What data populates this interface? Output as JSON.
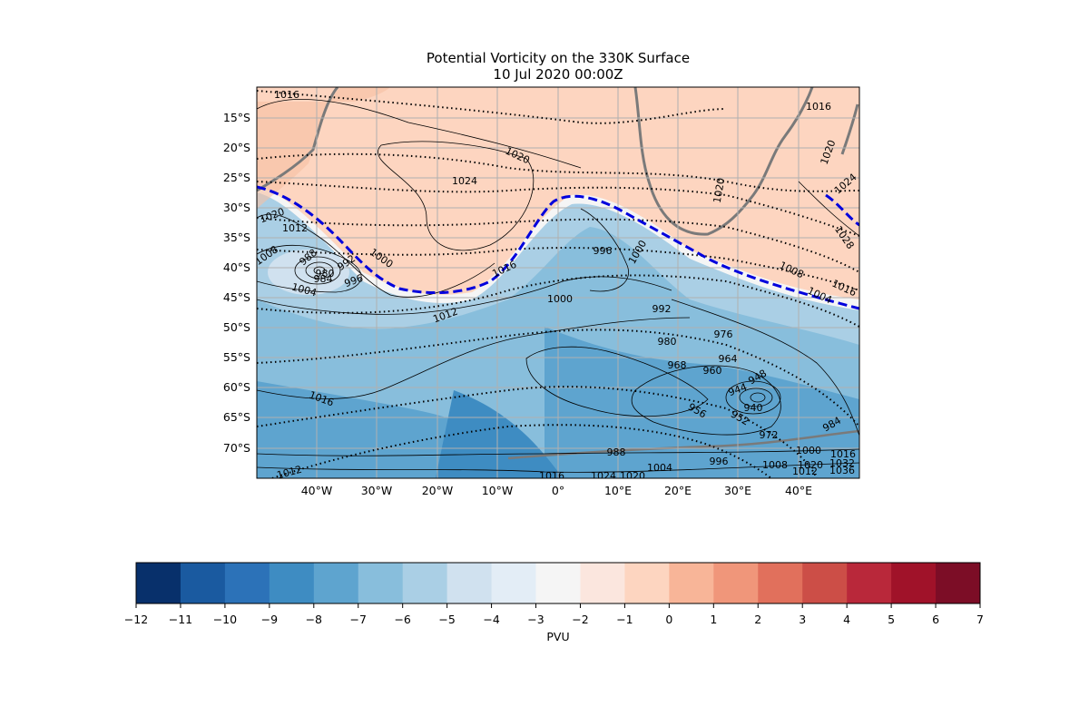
{
  "title": {
    "line1": "Potential Vorticity on the 330K Surface",
    "line2": "10 Jul 2020 00:00Z"
  },
  "map": {
    "lat_labels": [
      "15°S",
      "20°S",
      "25°S",
      "30°S",
      "35°S",
      "40°S",
      "45°S",
      "50°S",
      "55°S",
      "60°S",
      "65°S",
      "70°S"
    ],
    "lon_labels": [
      "40°W",
      "30°W",
      "20°W",
      "10°W",
      "0°",
      "10°E",
      "20°E",
      "30°E",
      "40°E"
    ],
    "contour_labels": [
      {
        "text": "1016",
        "color": "#000"
      },
      {
        "text": "1016",
        "color": "#000"
      },
      {
        "text": "1020",
        "color": "#000"
      },
      {
        "text": "1020",
        "color": "#000"
      },
      {
        "text": "1024",
        "color": "#000"
      },
      {
        "text": "1020",
        "color": "#000"
      },
      {
        "text": "1024",
        "color": "#000"
      },
      {
        "text": "1020",
        "color": "#000"
      },
      {
        "text": "1012",
        "color": "#000"
      },
      {
        "text": "1008",
        "color": "#000"
      },
      {
        "text": "988",
        "color": "#000"
      },
      {
        "text": "1000",
        "color": "#000"
      },
      {
        "text": "980",
        "color": "#000"
      },
      {
        "text": "984",
        "color": "#000"
      },
      {
        "text": "992",
        "color": "#000"
      },
      {
        "text": "996",
        "color": "#000"
      },
      {
        "text": "1004",
        "color": "#000"
      },
      {
        "text": "1016",
        "color": "#000"
      },
      {
        "text": "996",
        "color": "#000"
      },
      {
        "text": "1000",
        "color": "#000"
      },
      {
        "text": "1028",
        "color": "#000"
      },
      {
        "text": "1008",
        "color": "#000"
      },
      {
        "text": "1004",
        "color": "#000"
      },
      {
        "text": "1016",
        "color": "#000"
      },
      {
        "text": "1000",
        "color": "#000"
      },
      {
        "text": "1012",
        "color": "#000"
      },
      {
        "text": "992",
        "color": "#000"
      },
      {
        "text": "980",
        "color": "#000"
      },
      {
        "text": "976",
        "color": "#000"
      },
      {
        "text": "968",
        "color": "#000"
      },
      {
        "text": "964",
        "color": "#000"
      },
      {
        "text": "960",
        "color": "#000"
      },
      {
        "text": "948",
        "color": "#000"
      },
      {
        "text": "944",
        "color": "#000"
      },
      {
        "text": "940",
        "color": "#000"
      },
      {
        "text": "956",
        "color": "#000"
      },
      {
        "text": "952",
        "color": "#000"
      },
      {
        "text": "972",
        "color": "#000"
      },
      {
        "text": "984",
        "color": "#000"
      },
      {
        "text": "1016",
        "color": "#000"
      },
      {
        "text": "988",
        "color": "#000"
      },
      {
        "text": "1012",
        "color": "#000"
      },
      {
        "text": "1016",
        "color": "#000"
      },
      {
        "text": "1024",
        "color": "#000"
      },
      {
        "text": "1020",
        "color": "#000"
      },
      {
        "text": "1004",
        "color": "#000"
      },
      {
        "text": "996",
        "color": "#000"
      },
      {
        "text": "1008",
        "color": "#000"
      },
      {
        "text": "1000",
        "color": "#000"
      },
      {
        "text": "1016",
        "color": "#000"
      },
      {
        "text": "1020",
        "color": "#000"
      },
      {
        "text": "1032",
        "color": "#000"
      },
      {
        "text": "1036",
        "color": "#000"
      },
      {
        "text": "1012",
        "color": "#000"
      }
    ]
  },
  "colorbar": {
    "label": "PVU",
    "ticks": [
      "−12",
      "−11",
      "−10",
      "−9",
      "−8",
      "−7",
      "−6",
      "−5",
      "−4",
      "−3",
      "−2",
      "−1",
      "0",
      "1",
      "2",
      "3",
      "4",
      "5",
      "6",
      "7"
    ],
    "colors": [
      "#08306b",
      "#1a5aa0",
      "#2c72b8",
      "#3e8cc2",
      "#5ea4cf",
      "#88bedc",
      "#aacfe5",
      "#d0e1ef",
      "#e3edf6",
      "#f5f5f5",
      "#fbe6de",
      "#fdd5c0",
      "#f8b598",
      "#f0967a",
      "#e1705c",
      "#cc4e47",
      "#b9283a",
      "#a01229",
      "#7c0d26"
    ]
  }
}
